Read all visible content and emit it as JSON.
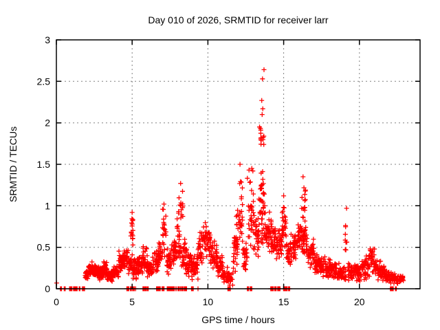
{
  "window": {
    "background": "#ffffff"
  },
  "chart_data": {
    "type": "scatter",
    "title": "Day 010 of 2026, SRMTID for receiver larr",
    "xlabel": "GPS time / hours",
    "ylabel": "SRMTID / TECUs",
    "xlim": [
      0,
      24
    ],
    "ylim": [
      0,
      3
    ],
    "xtick_values": [
      0,
      5,
      10,
      15,
      20
    ],
    "xtick_labels": [
      "0",
      "5",
      "10",
      "15",
      "20"
    ],
    "ytick_values": [
      0,
      0.5,
      1,
      1.5,
      2,
      2.5,
      3
    ],
    "ytick_labels": [
      "0",
      "0.5",
      "1",
      "1.5",
      "2",
      "2.5",
      "3"
    ],
    "grid": true,
    "legend_position": "none",
    "marker": "plus",
    "colors": {
      "marker": "#ff0000",
      "grid": "#808080",
      "axis": "#000000",
      "text": "#000000",
      "background": "#ffffff"
    },
    "series": [
      {
        "name": "SRMTID",
        "peak_points": [
          [
            0.02,
            0.07
          ],
          [
            5.0,
            0.92
          ],
          [
            7.1,
            1.02
          ],
          [
            8.2,
            1.27
          ],
          [
            12.12,
            1.5
          ],
          [
            12.9,
            1.45
          ],
          [
            13.58,
            2.1
          ],
          [
            13.62,
            2.17
          ],
          [
            13.55,
            2.27
          ],
          [
            13.6,
            2.53
          ],
          [
            13.7,
            2.64
          ],
          [
            15.0,
            1.12
          ],
          [
            16.28,
            1.35
          ],
          [
            19.15,
            0.97
          ]
        ],
        "cloud_bands": [
          [
            1.9,
            2.1,
            0.1,
            0.22,
            20
          ],
          [
            2.1,
            2.45,
            0.15,
            0.33,
            40
          ],
          [
            2.45,
            2.8,
            0.14,
            0.3,
            38
          ],
          [
            2.8,
            3.1,
            0.1,
            0.26,
            32
          ],
          [
            3.1,
            3.35,
            0.14,
            0.36,
            28
          ],
          [
            3.35,
            3.75,
            0.08,
            0.22,
            40
          ],
          [
            3.75,
            4.1,
            0.12,
            0.28,
            36
          ],
          [
            4.1,
            4.45,
            0.2,
            0.46,
            40
          ],
          [
            4.45,
            4.75,
            0.25,
            0.5,
            32
          ],
          [
            4.75,
            4.95,
            0.15,
            0.42,
            22
          ],
          [
            4.9,
            5.05,
            0.35,
            0.92,
            16
          ],
          [
            4.95,
            5.3,
            0.1,
            0.4,
            30
          ],
          [
            5.3,
            5.65,
            0.12,
            0.45,
            32
          ],
          [
            5.65,
            6.0,
            0.18,
            0.52,
            34
          ],
          [
            6.0,
            6.35,
            0.1,
            0.38,
            32
          ],
          [
            6.35,
            6.75,
            0.15,
            0.48,
            36
          ],
          [
            6.75,
            7.0,
            0.25,
            0.62,
            24
          ],
          [
            7.0,
            7.25,
            0.35,
            1.02,
            20
          ],
          [
            7.25,
            7.6,
            0.15,
            0.5,
            32
          ],
          [
            7.6,
            7.95,
            0.25,
            0.65,
            32
          ],
          [
            7.95,
            8.15,
            0.32,
            0.88,
            20
          ],
          [
            8.05,
            8.35,
            0.72,
            1.28,
            14
          ],
          [
            8.15,
            8.55,
            0.2,
            0.62,
            32
          ],
          [
            8.55,
            8.95,
            0.12,
            0.5,
            34
          ],
          [
            8.95,
            9.35,
            0.1,
            0.42,
            34
          ],
          [
            9.35,
            9.7,
            0.25,
            0.75,
            30
          ],
          [
            9.7,
            10.15,
            0.35,
            0.85,
            40
          ],
          [
            10.15,
            10.6,
            0.2,
            0.6,
            38
          ],
          [
            10.6,
            11.0,
            0.12,
            0.42,
            34
          ],
          [
            11.0,
            11.35,
            0.06,
            0.28,
            28
          ],
          [
            11.35,
            11.65,
            0.04,
            0.2,
            20
          ],
          [
            11.65,
            11.95,
            0.2,
            0.7,
            26
          ],
          [
            11.85,
            12.0,
            0.4,
            0.95,
            12
          ],
          [
            12.0,
            12.3,
            0.4,
            1.5,
            26
          ],
          [
            12.3,
            12.6,
            0.2,
            0.62,
            26
          ],
          [
            12.6,
            13.0,
            0.45,
            1.45,
            30
          ],
          [
            13.0,
            13.35,
            0.3,
            0.95,
            36
          ],
          [
            13.35,
            13.75,
            0.45,
            1.58,
            46
          ],
          [
            13.4,
            13.7,
            1.58,
            2.05,
            13
          ],
          [
            13.75,
            14.2,
            0.35,
            0.95,
            42
          ],
          [
            14.2,
            14.6,
            0.28,
            0.78,
            36
          ],
          [
            14.6,
            14.95,
            0.35,
            0.8,
            30
          ],
          [
            14.9,
            15.15,
            0.4,
            1.12,
            20
          ],
          [
            15.15,
            15.55,
            0.25,
            0.68,
            34
          ],
          [
            15.55,
            15.95,
            0.28,
            0.72,
            34
          ],
          [
            15.95,
            16.2,
            0.35,
            0.85,
            24
          ],
          [
            16.15,
            16.45,
            0.55,
            1.35,
            20
          ],
          [
            16.2,
            16.6,
            0.3,
            0.8,
            32
          ],
          [
            16.6,
            17.0,
            0.25,
            0.6,
            32
          ],
          [
            17.0,
            17.45,
            0.12,
            0.48,
            40
          ],
          [
            17.45,
            17.9,
            0.1,
            0.42,
            40
          ],
          [
            17.9,
            18.4,
            0.1,
            0.38,
            45
          ],
          [
            18.4,
            18.9,
            0.08,
            0.32,
            42
          ],
          [
            18.9,
            19.1,
            0.1,
            0.3,
            14
          ],
          [
            19.05,
            19.25,
            0.35,
            0.98,
            9
          ],
          [
            19.25,
            19.7,
            0.08,
            0.32,
            36
          ],
          [
            19.7,
            20.15,
            0.08,
            0.3,
            36
          ],
          [
            20.15,
            20.6,
            0.1,
            0.42,
            38
          ],
          [
            20.6,
            21.0,
            0.12,
            0.52,
            34
          ],
          [
            21.0,
            21.4,
            0.1,
            0.4,
            34
          ],
          [
            21.4,
            21.8,
            0.08,
            0.3,
            30
          ],
          [
            21.8,
            22.35,
            0.05,
            0.22,
            38
          ],
          [
            22.35,
            22.9,
            0.06,
            0.18,
            38
          ]
        ],
        "zero_runs": [
          [
            0.25,
            0.4,
            5
          ],
          [
            0.5,
            0.6,
            3
          ],
          [
            0.8,
            1.05,
            8
          ],
          [
            1.1,
            1.45,
            11
          ],
          [
            1.5,
            1.62,
            4
          ],
          [
            1.7,
            1.9,
            6
          ],
          [
            4.6,
            5.25,
            19
          ],
          [
            5.7,
            6.1,
            12
          ],
          [
            6.6,
            7.15,
            16
          ],
          [
            7.3,
            8.6,
            38
          ],
          [
            8.9,
            9.05,
            5
          ],
          [
            9.3,
            9.35,
            2
          ],
          [
            11.3,
            11.65,
            10
          ],
          [
            12.6,
            12.9,
            9
          ],
          [
            14.1,
            14.8,
            20
          ],
          [
            14.95,
            15.4,
            13
          ],
          [
            22.0,
            22.25,
            8
          ],
          [
            22.35,
            22.45,
            3
          ]
        ]
      }
    ]
  }
}
